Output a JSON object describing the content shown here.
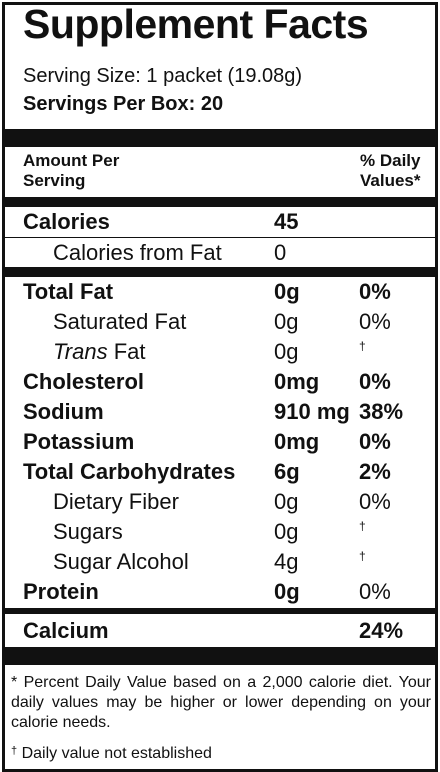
{
  "title": "Supplement Facts",
  "serving_size": "Serving Size: 1 packet (19.08g)",
  "servings_per_box": "Servings Per Box: 20",
  "header": {
    "amount_per_line1": "Amount Per",
    "amount_per_line2": "Serving",
    "daily_line1": "% Daily",
    "daily_line2": "Values*"
  },
  "rows": [
    {
      "label": "Calories",
      "amount": "45",
      "dv": ""
    },
    {
      "label": "Calories from Fat",
      "amount": "0",
      "dv": ""
    },
    {
      "label": "Total Fat",
      "amount": "0g",
      "dv": "0%"
    },
    {
      "label": "Saturated Fat",
      "amount": "0g",
      "dv": "0%"
    },
    {
      "label_italic": "Trans",
      "label_rest": " Fat",
      "amount": "0g",
      "dv": "†"
    },
    {
      "label": "Cholesterol",
      "amount": "0mg",
      "dv": "0%"
    },
    {
      "label": "Sodium",
      "amount": "910 mg",
      "dv": "38%"
    },
    {
      "label": "Potassium",
      "amount": "0mg",
      "dv": "0%"
    },
    {
      "label": "Total Carbohydrates",
      "amount": "6g",
      "dv": "2%"
    },
    {
      "label": "Dietary Fiber",
      "amount": "0g",
      "dv": "0%"
    },
    {
      "label": "Sugars",
      "amount": "0g",
      "dv": "†"
    },
    {
      "label": "Sugar Alcohol",
      "amount": "4g",
      "dv": "†"
    },
    {
      "label": "Protein",
      "amount": "0g",
      "dv": "0%"
    },
    {
      "label": "Calcium",
      "amount": "",
      "dv": "24%"
    }
  ],
  "footnote": "* Percent Daily Value based on a 2,000 calorie diet. Your daily values may be higher or lower depending on your calorie needs.",
  "footnote2_mark": "†",
  "footnote2_text": " Daily value not established"
}
